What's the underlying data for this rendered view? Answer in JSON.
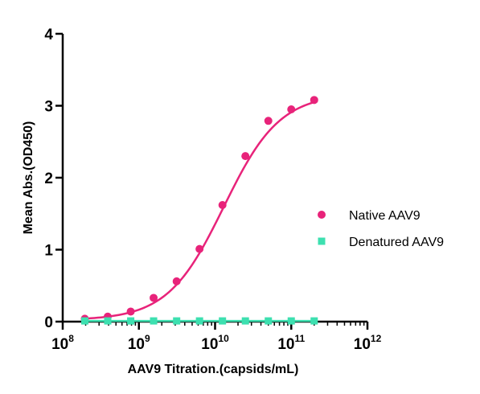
{
  "chart_data": {
    "type": "scatter",
    "title": "",
    "xlabel": "AAV9 Titration.(capsids/mL)",
    "ylabel": "Mean Abs.(OD450)",
    "xscale": "log",
    "xlim": [
      100000000,
      1000000000000
    ],
    "ylim": [
      0,
      4
    ],
    "x_ticks": [
      {
        "base": "10",
        "exp": "8",
        "value": 100000000
      },
      {
        "base": "10",
        "exp": "9",
        "value": 1000000000
      },
      {
        "base": "10",
        "exp": "10",
        "value": 10000000000
      },
      {
        "base": "10",
        "exp": "11",
        "value": 100000000000
      },
      {
        "base": "10",
        "exp": "12",
        "value": 1000000000000
      }
    ],
    "y_ticks": [
      0,
      1,
      2,
      3,
      4
    ],
    "grid": false,
    "legend": "right",
    "series": [
      {
        "name": "Native AAV9",
        "marker": "circle",
        "color": "#e8237a",
        "fit": "sigmoid",
        "x": [
          195000000,
          390000000,
          781000000,
          1560000000,
          3130000000,
          6250000000,
          12500000000,
          25000000000,
          50000000000,
          100000000000,
          200000000000
        ],
        "y": [
          0.04,
          0.07,
          0.14,
          0.33,
          0.56,
          1.01,
          1.62,
          2.3,
          2.79,
          2.95,
          3.08
        ]
      },
      {
        "name": "Denatured AAV9",
        "marker": "square",
        "color": "#3de0b0",
        "fit": "flat",
        "x": [
          195000000,
          390000000,
          781000000,
          1560000000,
          3130000000,
          6250000000,
          12500000000,
          25000000000,
          50000000000,
          100000000000,
          200000000000
        ],
        "y": [
          0.01,
          0.01,
          0.01,
          0.01,
          0.01,
          0.01,
          0.01,
          0.01,
          0.01,
          0.01,
          0.01
        ]
      }
    ]
  }
}
